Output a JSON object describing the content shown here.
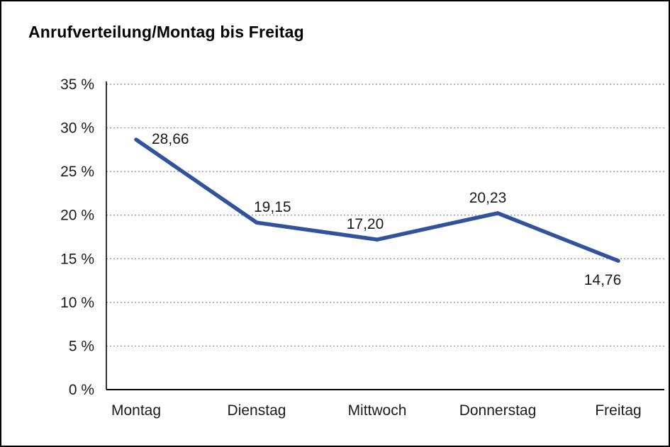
{
  "title": "Anrufverteilung/Montag bis Freitag",
  "chart_data": {
    "type": "line",
    "title": "Anrufverteilung/Montag bis Freitag",
    "categories": [
      "Montag",
      "Dienstag",
      "Mittwoch",
      "Donnerstag",
      "Freitag"
    ],
    "values": [
      28.66,
      19.15,
      17.2,
      20.23,
      14.76
    ],
    "value_labels": [
      "28,66",
      "19,15",
      "17,20",
      "20,23",
      "14,76"
    ],
    "xlabel": "",
    "ylabel": "",
    "ylim": [
      0,
      35
    ],
    "ytick_step": 5,
    "ytick_labels": [
      "0 %",
      "5 %",
      "10 %",
      "15 %",
      "20 %",
      "25 %",
      "30 %",
      "35 %"
    ],
    "grid": "horizontal-dotted",
    "legend": "none",
    "line_color": "#31539b",
    "grid_color": "#8c8c8c",
    "axis_color": "#000000",
    "text_color": "#1a1a1a"
  }
}
